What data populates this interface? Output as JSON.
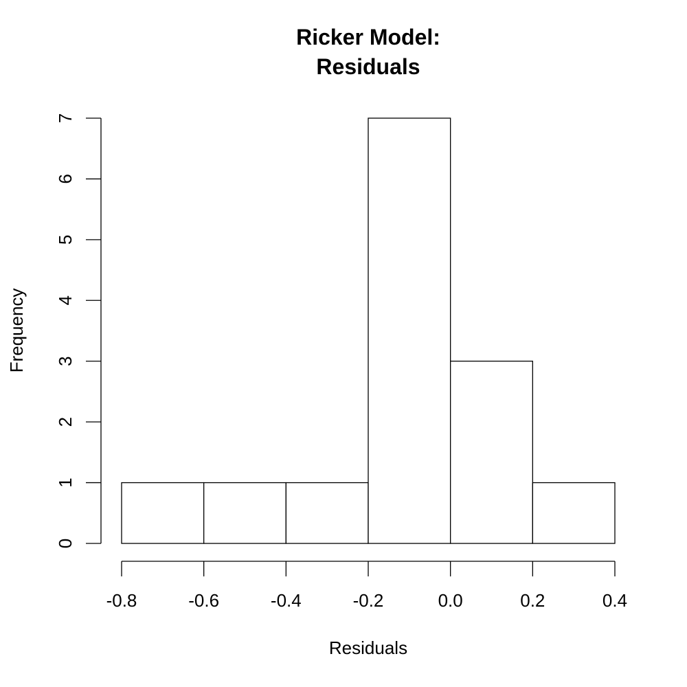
{
  "chart_data": {
    "type": "bar",
    "subtype": "histogram",
    "title_lines": [
      "Ricker Model:",
      "Residuals"
    ],
    "xlabel": "Residuals",
    "ylabel": "Frequency",
    "bins": [
      {
        "start": -0.8,
        "end": -0.6,
        "count": 1
      },
      {
        "start": -0.6,
        "end": -0.4,
        "count": 1
      },
      {
        "start": -0.4,
        "end": -0.2,
        "count": 1
      },
      {
        "start": -0.2,
        "end": 0.0,
        "count": 7
      },
      {
        "start": 0.0,
        "end": 0.2,
        "count": 3
      },
      {
        "start": 0.2,
        "end": 0.4,
        "count": 1
      }
    ],
    "xticks": [
      -0.8,
      -0.6,
      -0.4,
      -0.2,
      0.0,
      0.2,
      0.4
    ],
    "xtick_labels": [
      "-0.8",
      "-0.6",
      "-0.4",
      "-0.2",
      "0.0",
      "0.2",
      "0.4"
    ],
    "yticks": [
      0,
      1,
      2,
      3,
      4,
      5,
      6,
      7
    ],
    "ytick_labels": [
      "0",
      "1",
      "2",
      "3",
      "4",
      "5",
      "6",
      "7"
    ],
    "xlim": [
      -0.8,
      0.4
    ],
    "ylim": [
      0,
      7
    ],
    "grid": false,
    "bar_fill": "#ffffff",
    "bar_stroke": "#000000"
  }
}
